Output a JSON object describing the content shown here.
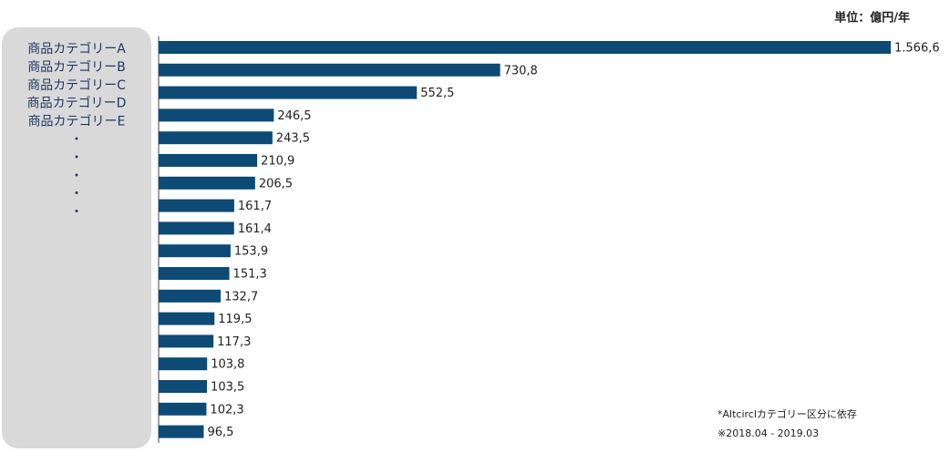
{
  "chart_data": {
    "type": "bar",
    "orientation": "horizontal",
    "unit_label": "単位：億円/年",
    "categories": [
      "商品カテゴリーA",
      "商品カテゴリーB",
      "商品カテゴリーC",
      "商品カテゴリーD",
      "商品カテゴリーE",
      "・",
      "・",
      "・",
      "・",
      "・",
      null,
      null,
      null,
      null,
      null,
      null,
      null,
      null
    ],
    "values": [
      1566.6,
      730.8,
      552.5,
      246.5,
      243.5,
      210.9,
      206.5,
      161.7,
      161.4,
      153.9,
      151.3,
      132.7,
      119.5,
      117.3,
      103.8,
      103.5,
      102.3,
      96.5
    ],
    "value_labels": [
      "1.566,6",
      "730,8",
      "552,5",
      "246,5",
      "243,5",
      "210,9",
      "206,5",
      "161,7",
      "161,4",
      "153,9",
      "151,3",
      "132,7",
      "119,5",
      "117,3",
      "103,8",
      "103,5",
      "102,3",
      "96,5"
    ],
    "color": "#0d4a75",
    "notes": [
      "*Altcirclカテゴリー区分に依存",
      "※2018.04 - 2019.03"
    ]
  }
}
